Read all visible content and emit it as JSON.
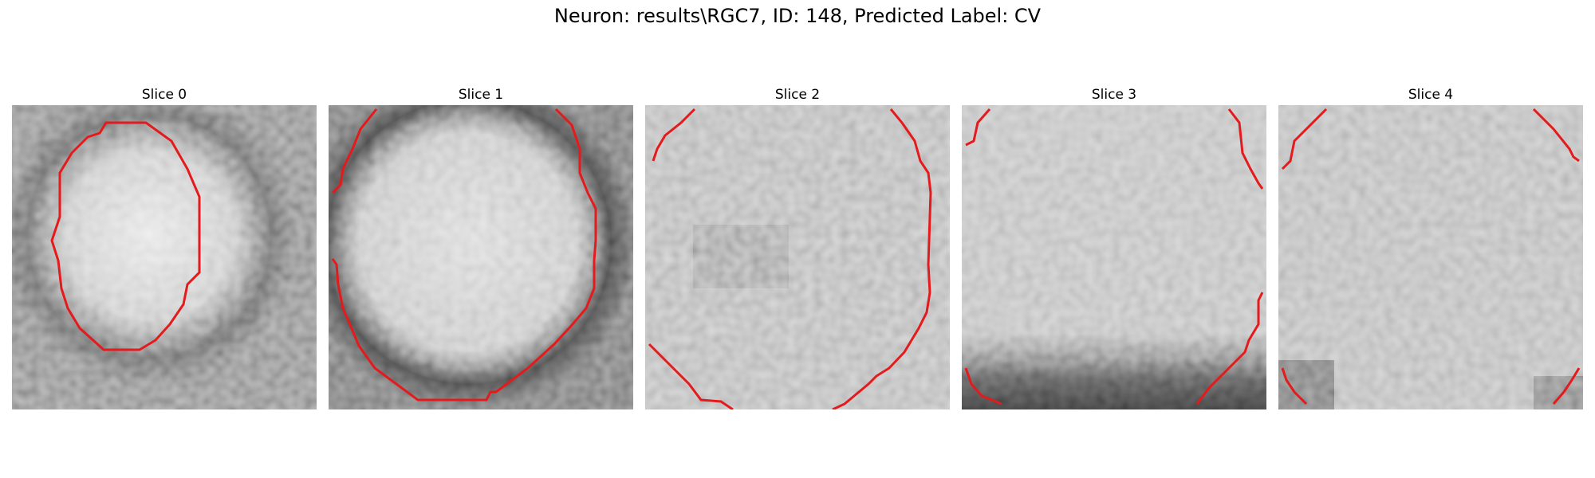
{
  "figure": {
    "title": "Neuron: results\\RGC7, ID: 148, Predicted Label: CV"
  },
  "panels": [
    {
      "title": "Slice 0"
    },
    {
      "title": "Slice 1"
    },
    {
      "title": "Slice 2"
    },
    {
      "title": "Slice 3"
    },
    {
      "title": "Slice 4"
    }
  ],
  "colors": {
    "contour": "#e41a1c",
    "background": "#ffffff"
  }
}
